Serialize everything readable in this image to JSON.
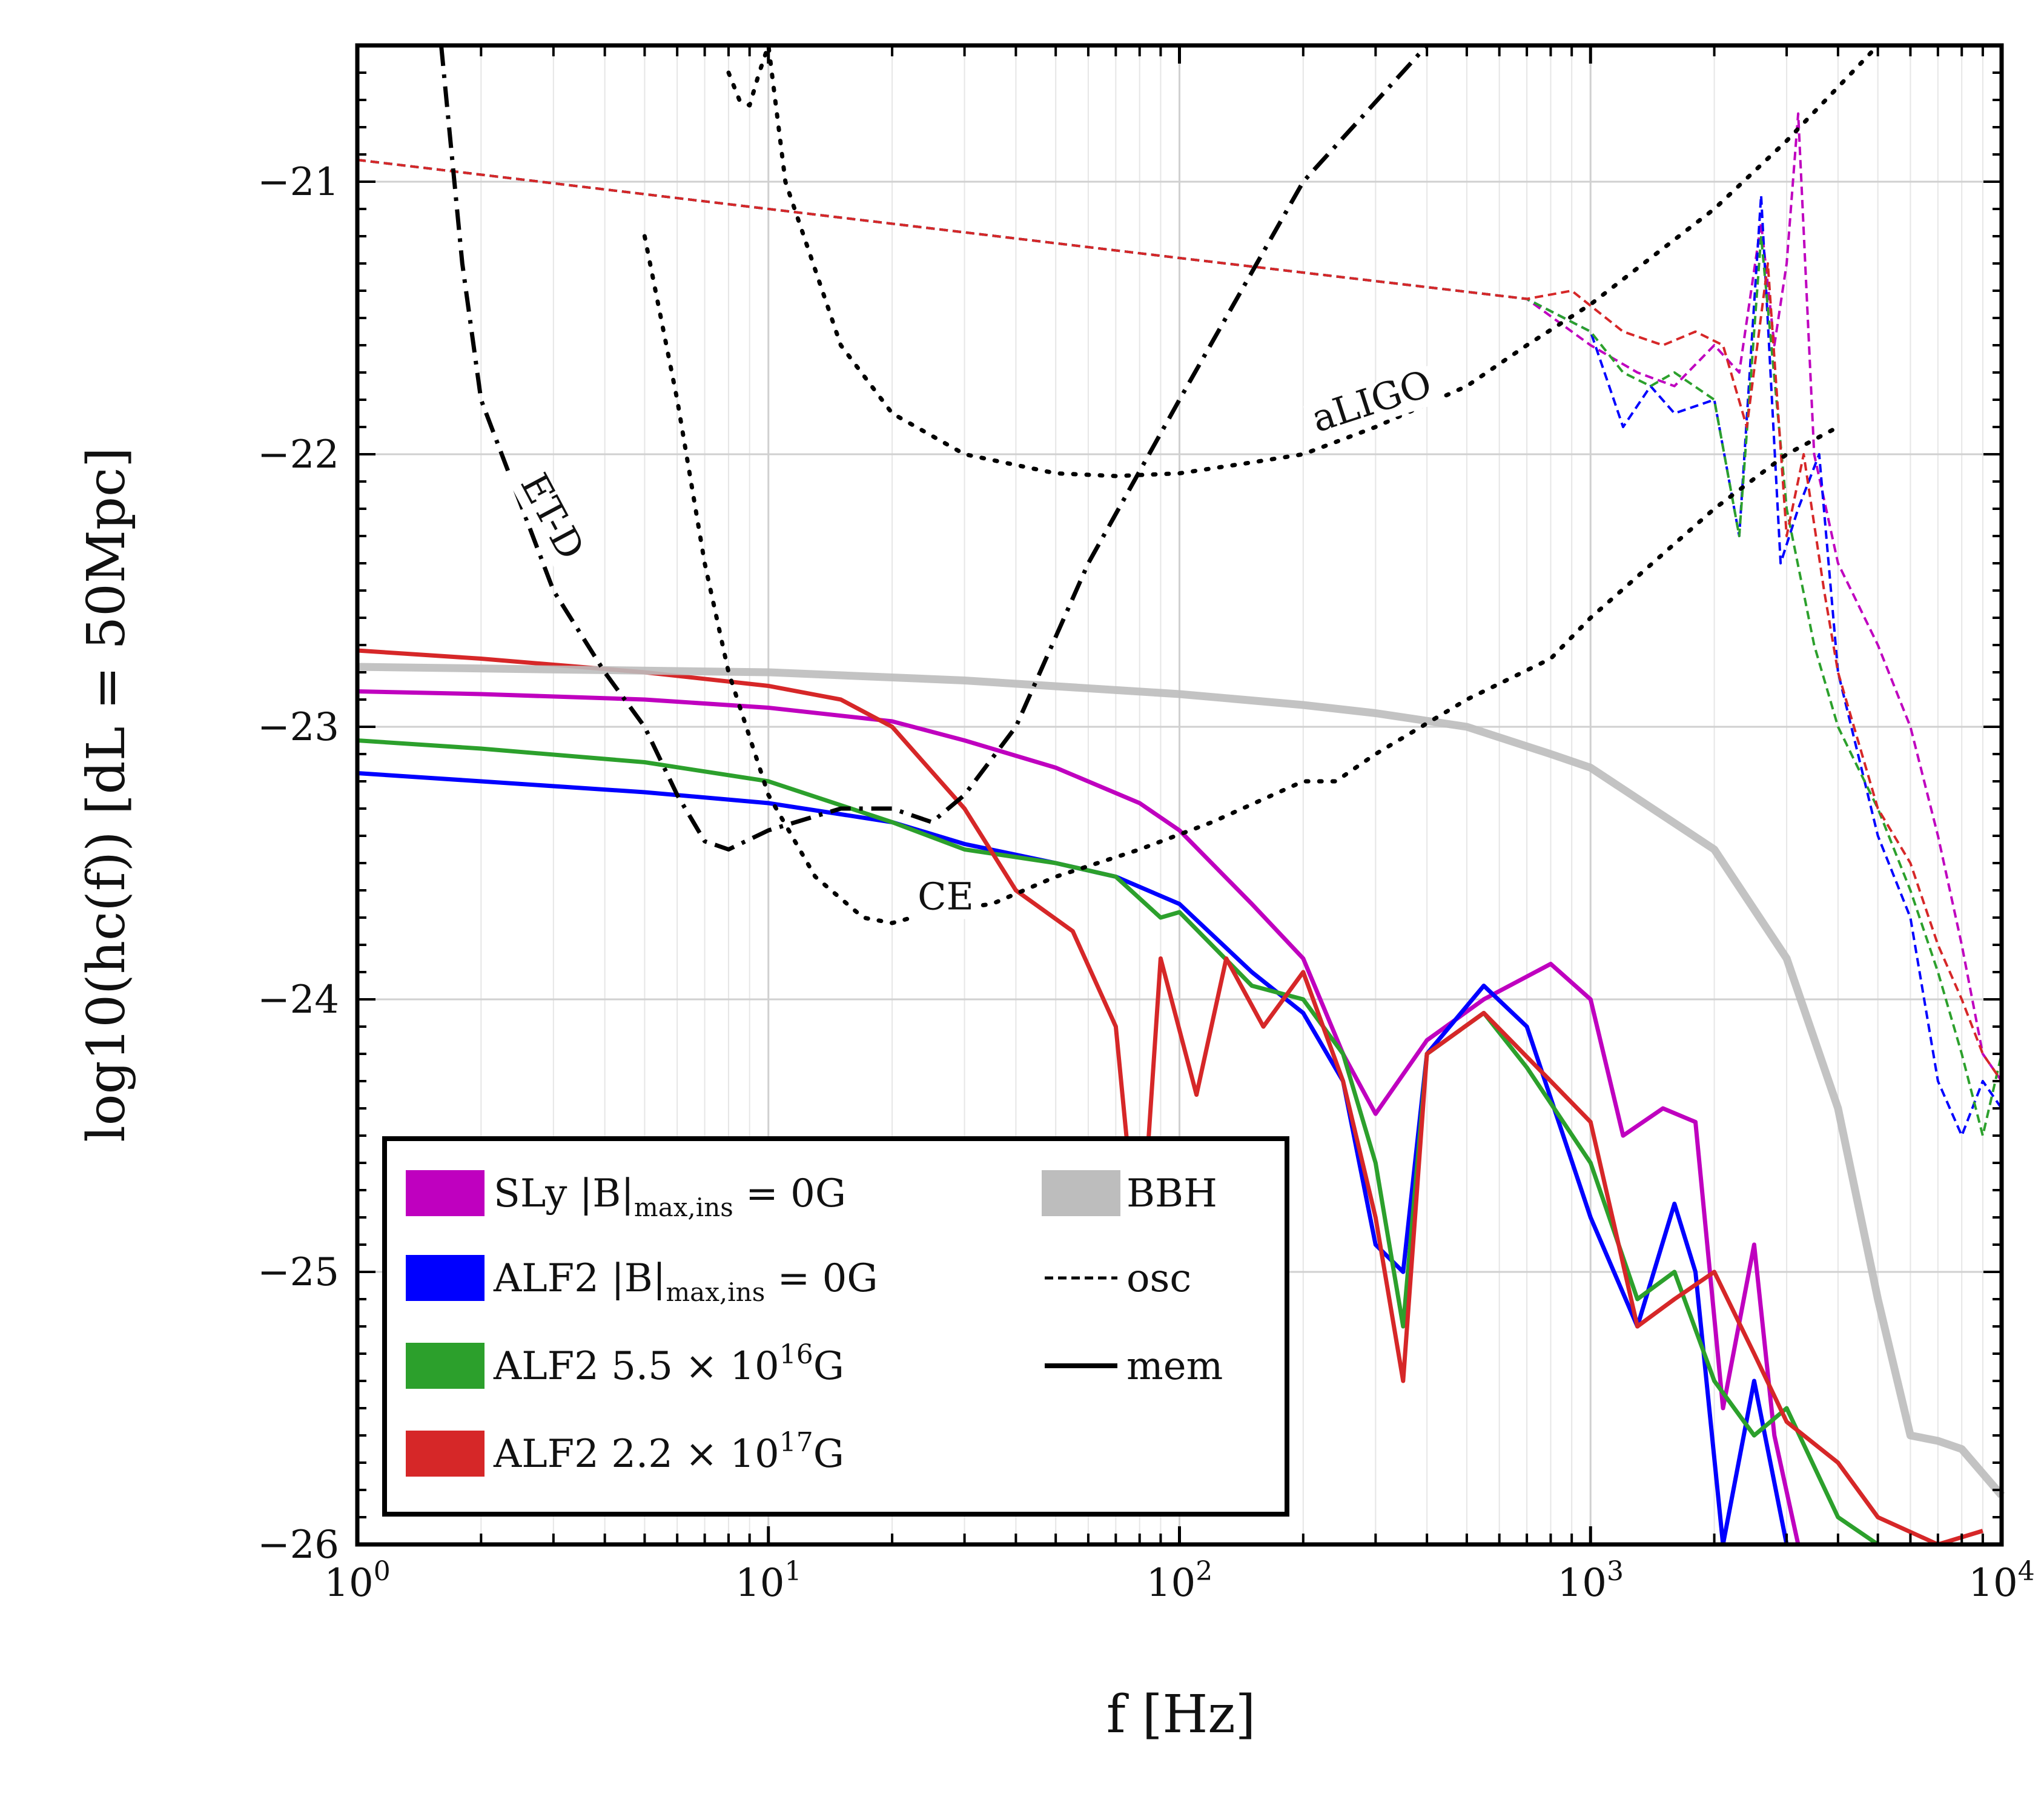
{
  "chart_data": {
    "type": "line",
    "title": "",
    "xlabel": "f [Hz]",
    "ylabel": "log10(hc(f))  [dL = 50Mpc]",
    "xscale": "log",
    "xlim": [
      1,
      10000
    ],
    "ylim": [
      -26,
      -20.5
    ],
    "xticks": [
      {
        "value": 1,
        "label": "10^0"
      },
      {
        "value": 10,
        "label": "10^1"
      },
      {
        "value": 100,
        "label": "10^2"
      },
      {
        "value": 1000,
        "label": "10^3"
      },
      {
        "value": 10000,
        "label": "10^4"
      }
    ],
    "yticks": [
      {
        "value": -21,
        "label": "−21"
      },
      {
        "value": -22,
        "label": "−22"
      },
      {
        "value": -23,
        "label": "−23"
      },
      {
        "value": -24,
        "label": "−24"
      },
      {
        "value": -25,
        "label": "−25"
      },
      {
        "value": -26,
        "label": "−26"
      }
    ],
    "grid": true,
    "legend_position": "lower-left",
    "legend": [
      {
        "label": "SLy |B|max,ins = 0G",
        "color": "#bf00bf",
        "kind": "color"
      },
      {
        "label": "ALF2 |B|max,ins = 0G",
        "color": "#0000ff",
        "kind": "color"
      },
      {
        "label": "ALF2 5.5 × 10^16G",
        "color": "#2ca02c",
        "kind": "color"
      },
      {
        "label": "ALF2 2.2 × 10^17G",
        "color": "#d62728",
        "kind": "color"
      },
      {
        "label": "BBH",
        "color": "#bdbdbd",
        "kind": "color"
      },
      {
        "label": "osc",
        "color": "#000000",
        "kind": "dashed"
      },
      {
        "label": "mem",
        "color": "#000000",
        "kind": "solid"
      }
    ],
    "series": [
      {
        "name": "SLy |B|max,ins = 0G",
        "component": "mem",
        "color": "#bf00bf",
        "style": "solid",
        "x": [
          1,
          2,
          5,
          10,
          20,
          30,
          50,
          80,
          100,
          150,
          200,
          250,
          300,
          400,
          550,
          800,
          1000,
          1200,
          1500,
          1800,
          2100,
          2500,
          2800,
          3200
        ],
        "y": [
          -22.87,
          -22.88,
          -22.9,
          -22.93,
          -22.98,
          -23.05,
          -23.15,
          -23.28,
          -23.38,
          -23.65,
          -23.85,
          -24.2,
          -24.42,
          -24.15,
          -24.0,
          -23.87,
          -24.0,
          -24.5,
          -24.4,
          -24.45,
          -25.5,
          -24.9,
          -25.6,
          -26.0
        ]
      },
      {
        "name": "ALF2 |B|max,ins = 0G",
        "component": "mem",
        "color": "#0000ff",
        "style": "solid",
        "x": [
          1,
          2,
          5,
          10,
          20,
          30,
          50,
          70,
          100,
          150,
          200,
          250,
          300,
          350,
          400,
          550,
          700,
          1000,
          1300,
          1600,
          1800,
          2100,
          2500,
          3000
        ],
        "y": [
          -23.17,
          -23.2,
          -23.24,
          -23.28,
          -23.35,
          -23.43,
          -23.5,
          -23.55,
          -23.65,
          -23.9,
          -24.05,
          -24.3,
          -24.9,
          -25.0,
          -24.2,
          -23.95,
          -24.1,
          -24.8,
          -25.2,
          -24.75,
          -25.0,
          -26.0,
          -25.4,
          -26.0
        ]
      },
      {
        "name": "ALF2 5.5 × 10^16G",
        "component": "mem",
        "color": "#2ca02c",
        "style": "solid",
        "x": [
          1,
          2,
          5,
          10,
          20,
          30,
          50,
          70,
          90,
          100,
          150,
          200,
          250,
          300,
          350,
          400,
          550,
          700,
          1000,
          1300,
          1600,
          2000,
          2500,
          3000,
          4000,
          5000
        ],
        "y": [
          -23.05,
          -23.08,
          -23.13,
          -23.2,
          -23.35,
          -23.45,
          -23.5,
          -23.55,
          -23.7,
          -23.68,
          -23.95,
          -24.0,
          -24.2,
          -24.6,
          -25.2,
          -24.2,
          -24.05,
          -24.25,
          -24.6,
          -25.1,
          -25.0,
          -25.4,
          -25.6,
          -25.5,
          -25.9,
          -26.0
        ]
      },
      {
        "name": "ALF2 2.2 × 10^17G",
        "component": "mem",
        "color": "#d62728",
        "style": "solid",
        "x": [
          1,
          2,
          5,
          10,
          15,
          20,
          30,
          40,
          55,
          70,
          80,
          90,
          110,
          130,
          160,
          200,
          250,
          300,
          350,
          400,
          550,
          800,
          1000,
          1300,
          1600,
          2000,
          2500,
          3000,
          4000,
          5000,
          7000,
          9000
        ],
        "y": [
          -22.72,
          -22.75,
          -22.8,
          -22.85,
          -22.9,
          -23.0,
          -23.3,
          -23.6,
          -23.75,
          -24.1,
          -25.0,
          -23.85,
          -24.35,
          -23.85,
          -24.1,
          -23.9,
          -24.3,
          -24.8,
          -25.4,
          -24.2,
          -24.05,
          -24.3,
          -24.45,
          -25.2,
          -25.1,
          -25.0,
          -25.3,
          -25.55,
          -25.7,
          -25.9,
          -26.0,
          -25.95
        ]
      },
      {
        "name": "BBH",
        "component": "mem",
        "color": "#bdbdbd",
        "style": "solid",
        "x": [
          1,
          10,
          30,
          100,
          200,
          300,
          500,
          800,
          1000,
          2000,
          3000,
          4000,
          5000,
          6000,
          7000,
          8000,
          10000
        ],
        "y": [
          -22.78,
          -22.8,
          -22.83,
          -22.88,
          -22.92,
          -22.95,
          -23.0,
          -23.1,
          -23.15,
          -23.45,
          -23.85,
          -24.4,
          -25.1,
          -25.6,
          -25.62,
          -25.65,
          -25.82
        ]
      },
      {
        "name": "SLy |B|max,ins = 0G",
        "component": "osc",
        "color": "#bf00bf",
        "style": "dashed",
        "x": [
          1,
          10,
          100,
          700,
          1000,
          1300,
          1600,
          2000,
          2300,
          2600,
          2800,
          3000,
          3200,
          3500,
          4000,
          5000,
          6000,
          7000,
          8000,
          9000,
          10000
        ],
        "y": [
          -20.92,
          -21.1,
          -21.28,
          -21.43,
          -21.6,
          -21.7,
          -21.75,
          -21.6,
          -21.7,
          -21.15,
          -21.6,
          -21.3,
          -20.75,
          -22.0,
          -22.4,
          -22.7,
          -23.0,
          -23.4,
          -23.8,
          -24.2,
          -24.3
        ]
      },
      {
        "name": "ALF2 |B|max,ins = 0G",
        "component": "osc",
        "color": "#0000ff",
        "style": "dashed",
        "x": [
          1,
          10,
          100,
          700,
          1000,
          1200,
          1400,
          1600,
          2000,
          2300,
          2600,
          2900,
          3200,
          3600,
          4000,
          5000,
          6000,
          7000,
          8000,
          9000,
          10000
        ],
        "y": [
          -20.92,
          -21.1,
          -21.28,
          -21.43,
          -21.55,
          -21.9,
          -21.75,
          -21.85,
          -21.8,
          -22.3,
          -21.05,
          -22.4,
          -22.2,
          -22.0,
          -22.8,
          -23.4,
          -23.7,
          -24.3,
          -24.5,
          -24.3,
          -24.4
        ]
      },
      {
        "name": "ALF2 5.5 × 10^16G",
        "component": "osc",
        "color": "#2ca02c",
        "style": "dashed",
        "x": [
          1,
          10,
          100,
          700,
          1000,
          1200,
          1400,
          1600,
          2000,
          2300,
          2600,
          3000,
          3500,
          4000,
          5000,
          6000,
          7000,
          8000,
          9000,
          10000
        ],
        "y": [
          -20.92,
          -21.1,
          -21.28,
          -21.43,
          -21.55,
          -21.7,
          -21.75,
          -21.7,
          -21.8,
          -22.3,
          -21.2,
          -22.2,
          -22.7,
          -23.0,
          -23.3,
          -23.6,
          -23.9,
          -24.2,
          -24.5,
          -24.2
        ]
      },
      {
        "name": "ALF2 2.2 × 10^17G",
        "component": "osc",
        "color": "#d62728",
        "style": "dashed",
        "x": [
          1,
          10,
          100,
          700,
          900,
          1200,
          1500,
          1800,
          2100,
          2400,
          2700,
          3000,
          3300,
          3700,
          4000,
          5000,
          6000,
          7000,
          8000,
          9000,
          10000
        ],
        "y": [
          -20.92,
          -21.1,
          -21.28,
          -21.43,
          -21.4,
          -21.55,
          -21.6,
          -21.55,
          -21.6,
          -21.9,
          -21.3,
          -22.3,
          -22.0,
          -22.5,
          -22.8,
          -23.3,
          -23.5,
          -23.8,
          -24.0,
          -24.2,
          -24.3
        ]
      },
      {
        "name": "aLIGO",
        "component": "detector",
        "color": "#000000",
        "style": "dotted",
        "x": [
          8,
          8.5,
          9,
          9.5,
          10,
          11,
          15,
          20,
          30,
          50,
          70,
          100,
          150,
          200,
          300,
          500,
          700,
          1000,
          2000,
          3000,
          5000
        ],
        "y": [
          -20.6,
          -20.7,
          -20.72,
          -20.6,
          -20.5,
          -21.0,
          -21.6,
          -21.85,
          -22.0,
          -22.07,
          -22.08,
          -22.07,
          -22.03,
          -22.0,
          -21.9,
          -21.75,
          -21.6,
          -21.45,
          -21.1,
          -20.85,
          -20.5
        ]
      },
      {
        "name": "ET-D",
        "component": "detector",
        "color": "#000000",
        "style": "dashdot",
        "x": [
          1.6,
          1.8,
          2,
          3,
          4,
          5,
          6,
          7,
          8,
          10,
          15,
          20,
          25,
          30,
          40,
          60,
          100,
          200,
          400
        ],
        "y": [
          -20.5,
          -21.3,
          -21.8,
          -22.5,
          -22.8,
          -23.0,
          -23.25,
          -23.42,
          -23.45,
          -23.38,
          -23.3,
          -23.3,
          -23.35,
          -23.25,
          -23.0,
          -22.4,
          -21.8,
          -21.0,
          -20.5
        ]
      },
      {
        "name": "CE",
        "component": "detector",
        "color": "#000000",
        "style": "dotted",
        "x": [
          5,
          6,
          7,
          8,
          10,
          13,
          17,
          20,
          25,
          35,
          50,
          80,
          120,
          200,
          240,
          300,
          500,
          800,
          1000,
          2000,
          3000,
          4000
        ],
        "y": [
          -21.2,
          -21.8,
          -22.4,
          -22.8,
          -23.25,
          -23.55,
          -23.7,
          -23.72,
          -23.68,
          -23.65,
          -23.55,
          -23.45,
          -23.35,
          -23.2,
          -23.2,
          -23.1,
          -22.9,
          -22.75,
          -22.6,
          -22.2,
          -22.0,
          -21.9
        ]
      }
    ],
    "annotations": [
      {
        "text": "ET-D",
        "x": 2.8,
        "y": -22.25
      },
      {
        "text": "aLIGO",
        "x": 300,
        "y": -21.85
      },
      {
        "text": "CE",
        "x": 27,
        "y": -23.67
      }
    ]
  }
}
